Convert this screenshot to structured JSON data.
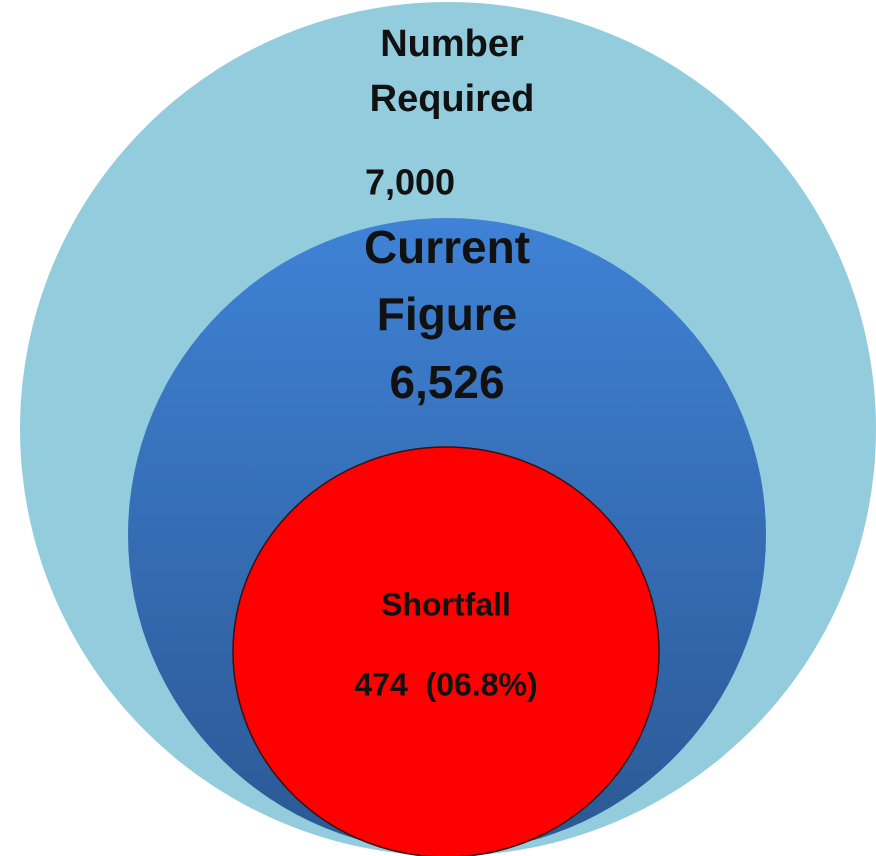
{
  "circles": [
    {
      "label": [
        "Number",
        "Required"
      ],
      "value": "7,000"
    },
    {
      "label": [
        "Current",
        "Figure"
      ],
      "value": "6,526"
    },
    {
      "label": [
        "Shortfall"
      ],
      "value": "474  (06.8%)"
    }
  ]
}
